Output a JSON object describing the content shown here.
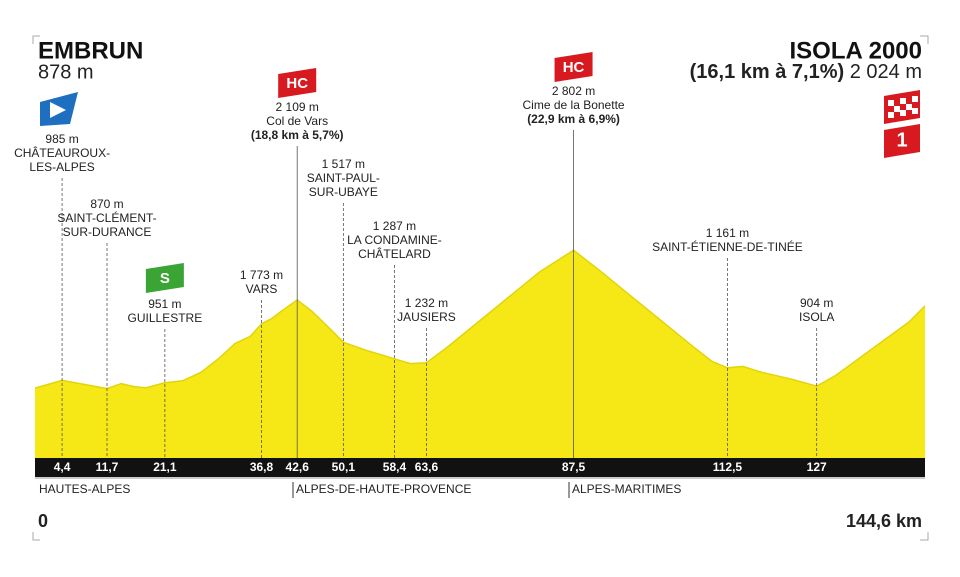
{
  "chart_data": {
    "type": "profile",
    "start": {
      "name": "EMBRUN",
      "altitude_label": "878 m"
    },
    "finish": {
      "name": "ISOLA 2000",
      "climb": "(16,1 km à 7,1%)",
      "altitude_label": "2 024 m",
      "stage": "1"
    },
    "color": "#f6e816",
    "xlim": [
      0,
      144.6
    ],
    "ylim": [
      0,
      3000
    ],
    "distance_label": "144,6 km",
    "x": [
      0,
      4.4,
      8,
      11.7,
      14,
      16,
      18,
      21.1,
      24,
      27,
      30,
      32.5,
      35,
      36.8,
      38.5,
      40,
      42.6,
      45,
      48,
      50.1,
      54,
      58.4,
      61,
      63.6,
      67,
      72,
      77,
      82,
      87.5,
      92,
      97,
      102,
      107,
      110,
      112.5,
      115,
      118,
      123,
      127,
      130,
      134,
      138,
      142,
      144.6
    ],
    "values": [
      878,
      985,
      930,
      870,
      940,
      900,
      880,
      951,
      980,
      1100,
      1300,
      1500,
      1600,
      1773,
      1850,
      1950,
      2109,
      1950,
      1700,
      1517,
      1400,
      1287,
      1220,
      1232,
      1450,
      1800,
      2150,
      2500,
      2802,
      2500,
      2150,
      1800,
      1450,
      1250,
      1161,
      1180,
      1100,
      1000,
      904,
      1050,
      1300,
      1550,
      1800,
      2024
    ],
    "waypoints": [
      {
        "km": {
          "value": 4.4,
          "label": "4,4"
        },
        "altitude": 985,
        "altitude_label": "985 m",
        "name": [
          "CHÂTEAUROUX-",
          "LES-ALPES"
        ]
      },
      {
        "km": {
          "value": 11.7,
          "label": "11,7"
        },
        "altitude": 870,
        "altitude_label": "870 m",
        "name": [
          "SAINT-CLÉMENT-",
          "SUR-DURANCE"
        ]
      },
      {
        "km": {
          "value": 21.1,
          "label": "21,1"
        },
        "altitude": 951,
        "altitude_label": "951 m",
        "name": [
          "GUILLESTRE"
        ],
        "category": "S"
      },
      {
        "km": {
          "value": 36.8,
          "label": "36,8"
        },
        "altitude": 1773,
        "altitude_label": "1 773 m",
        "name": [
          "VARS"
        ]
      },
      {
        "km": {
          "value": 42.6,
          "label": "42,6"
        },
        "altitude": 2109,
        "altitude_label": "2 109 m",
        "name": [
          "Col de Vars"
        ],
        "climb": "(18,8 km à 5,7%)",
        "category": "HC"
      },
      {
        "km": {
          "value": 50.1,
          "label": "50,1"
        },
        "altitude": 1517,
        "altitude_label": "1 517 m",
        "name": [
          "SAINT-PAUL-",
          "SUR-UBAYE"
        ]
      },
      {
        "km": {
          "value": 58.4,
          "label": "58,4"
        },
        "altitude": 1287,
        "altitude_label": "1 287 m",
        "name": [
          "LA CONDAMINE-",
          "CHÂTELARD"
        ]
      },
      {
        "km": {
          "value": 63.6,
          "label": "63,6"
        },
        "altitude": 1232,
        "altitude_label": "1 232 m",
        "name": [
          "JAUSIERS"
        ]
      },
      {
        "km": {
          "value": 87.5,
          "label": "87,5"
        },
        "altitude": 2802,
        "altitude_label": "2 802 m",
        "name": [
          "Cime de la Bonette"
        ],
        "climb": "(22,9 km à 6,9%)",
        "category": "HC"
      },
      {
        "km": {
          "value": 112.5,
          "label": "112,5"
        },
        "altitude": 1161,
        "altitude_label": "1 161 m",
        "name": [
          "SAINT-ÉTIENNE-DE-TINÉE"
        ]
      },
      {
        "km": {
          "value": 127,
          "label": "127"
        },
        "altitude": 904,
        "altitude_label": "904 m",
        "name": [
          "ISOLA"
        ]
      }
    ],
    "departments": [
      "HAUTES-ALPES",
      "ALPES-DE-HAUTE-PROVENCE",
      "ALPES-MARITIMES"
    ]
  }
}
